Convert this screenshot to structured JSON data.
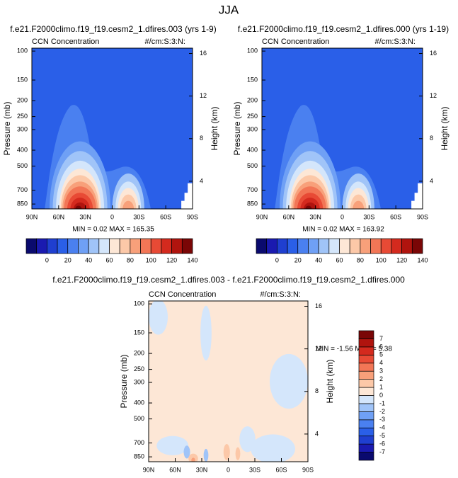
{
  "title": "JJA",
  "chart_data": [
    {
      "type": "contour",
      "title": "f.e21.F2000climo.f19_f19.cesm2_1.dfires.003 (yrs 1-9)",
      "left_label": "CCN Concentration",
      "right_label": "#/cm:S:3:N:",
      "min_max": "MIN =  0.02   MAX = 165.35",
      "ylabel": "Pressure (mb)",
      "y2label": "Height (km)",
      "xlim": [
        90,
        -90
      ],
      "xticks": [
        {
          "value": 90,
          "label": "90N"
        },
        {
          "value": 60,
          "label": "60N"
        },
        {
          "value": 30,
          "label": "30N"
        },
        0,
        {
          "value": -30,
          "label": "30S"
        },
        {
          "value": -60,
          "label": "60S"
        },
        {
          "value": -90,
          "label": "90S"
        }
      ],
      "ylim": [
        910,
        96
      ],
      "log_y": true,
      "yticks": [
        100,
        150,
        200,
        250,
        300,
        400,
        500,
        700,
        850
      ],
      "y2lim": [
        1.4,
        16.5
      ],
      "y2ticks": [
        4,
        8,
        12,
        16
      ],
      "colorbar": {
        "orientation": "horizontal",
        "clim": [
          -20,
          140
        ],
        "ticks": [
          0,
          20,
          40,
          60,
          80,
          100,
          120,
          140
        ],
        "colors": [
          "#0a0a6e",
          "#1a1ab0",
          "#1f3fd0",
          "#2a5fe8",
          "#4a80f0",
          "#6fa0f5",
          "#a0c4f8",
          "#d4e6fb",
          "#fde7d6",
          "#fcc8a8",
          "#f8a07a",
          "#f27656",
          "#e84a35",
          "#d42a1e",
          "#b0140e",
          "#7a0606"
        ]
      }
    },
    {
      "type": "contour",
      "title": "f.e21.F2000climo.f19_f19.cesm2_1.dfires.000 (yrs 1-19)",
      "left_label": "CCN Concentration",
      "right_label": "#/cm:S:3:N:",
      "min_max": "MIN =  0.02   MAX = 163.92",
      "ylabel": "Pressure (mb)",
      "y2label": "Height (km)",
      "xlim": [
        90,
        -90
      ],
      "xticks": [
        {
          "value": 90,
          "label": "90N"
        },
        {
          "value": 60,
          "label": "60N"
        },
        {
          "value": 30,
          "label": "30N"
        },
        0,
        {
          "value": -30,
          "label": "30S"
        },
        {
          "value": -60,
          "label": "60S"
        },
        {
          "value": -90,
          "label": "90S"
        }
      ],
      "ylim": [
        910,
        96
      ],
      "log_y": true,
      "yticks": [
        100,
        150,
        200,
        250,
        300,
        400,
        500,
        700,
        850
      ],
      "y2lim": [
        1.4,
        16.5
      ],
      "y2ticks": [
        4,
        8,
        12,
        16
      ],
      "colorbar": {
        "orientation": "horizontal",
        "clim": [
          -20,
          140
        ],
        "ticks": [
          0,
          20,
          40,
          60,
          80,
          100,
          120,
          140
        ],
        "colors": [
          "#0a0a6e",
          "#1a1ab0",
          "#1f3fd0",
          "#2a5fe8",
          "#4a80f0",
          "#6fa0f5",
          "#a0c4f8",
          "#d4e6fb",
          "#fde7d6",
          "#fcc8a8",
          "#f8a07a",
          "#f27656",
          "#e84a35",
          "#d42a1e",
          "#b0140e",
          "#7a0606"
        ]
      }
    },
    {
      "type": "contour",
      "title": "f.e21.F2000climo.f19_f19.cesm2_1.dfires.003 - f.e21.F2000climo.f19_f19.cesm2_1.dfires.000",
      "left_label": "CCN Concentration",
      "right_label": "#/cm:S:3:N:",
      "min_max": "MIN = -1.56   MAX =  5.38",
      "ylabel": "Pressure (mb)",
      "y2label": "Height (km)",
      "xlim": [
        90,
        -90
      ],
      "xticks": [
        {
          "value": 90,
          "label": "90N"
        },
        {
          "value": 60,
          "label": "60N"
        },
        {
          "value": 30,
          "label": "30N"
        },
        0,
        {
          "value": -30,
          "label": "30S"
        },
        {
          "value": -60,
          "label": "60S"
        },
        {
          "value": -90,
          "label": "90S"
        }
      ],
      "ylim": [
        910,
        96
      ],
      "log_y": true,
      "yticks": [
        100,
        150,
        200,
        250,
        300,
        400,
        500,
        700,
        850
      ],
      "y2lim": [
        1.4,
        16.5
      ],
      "y2ticks": [
        4,
        8,
        12,
        16
      ],
      "colorbar": {
        "orientation": "vertical",
        "clim": [
          -8,
          8
        ],
        "ticks": [
          7,
          6,
          5,
          4,
          3,
          2,
          1,
          0,
          -1,
          -2,
          -3,
          -4,
          -5,
          -6,
          -7
        ],
        "colors": [
          "#0a0a6e",
          "#1a1ab0",
          "#1f3fd0",
          "#2a5fe8",
          "#4a80f0",
          "#6fa0f5",
          "#a0c4f8",
          "#d4e6fb",
          "#fde7d6",
          "#fcc8a8",
          "#f8a07a",
          "#f27656",
          "#e84a35",
          "#d42a1e",
          "#b0140e",
          "#7a0606"
        ]
      }
    }
  ]
}
